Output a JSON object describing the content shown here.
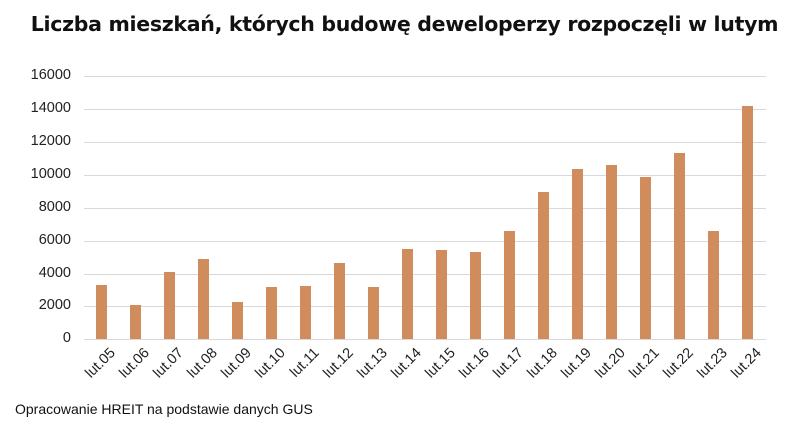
{
  "chart_data": {
    "type": "bar",
    "title": "Liczba mieszkań, których budowę deweloperzy rozpoczęli w lutym",
    "xlabel": "",
    "ylabel": "",
    "ylim": [
      0,
      16000
    ],
    "yticks": [
      0,
      2000,
      4000,
      6000,
      8000,
      10000,
      12000,
      14000,
      16000
    ],
    "grid": true,
    "legend": null,
    "bar_color": "#D08C5C",
    "categories": [
      "lut.05",
      "lut.06",
      "lut.07",
      "lut.08",
      "lut.09",
      "lut.10",
      "lut.11",
      "lut.12",
      "lut.13",
      "lut.14",
      "lut.15",
      "lut.16",
      "lut.17",
      "lut.18",
      "lut.19",
      "lut.20",
      "lut.21",
      "lut.22",
      "lut.23",
      "lut.24"
    ],
    "values": [
      3300,
      2100,
      4080,
      4870,
      2260,
      3170,
      3230,
      4620,
      3170,
      5470,
      5410,
      5290,
      6560,
      8950,
      10350,
      10600,
      9870,
      11330,
      6580,
      14180
    ]
  },
  "footer": {
    "source": "Opracowanie HREIT na podstawie danych GUS"
  }
}
